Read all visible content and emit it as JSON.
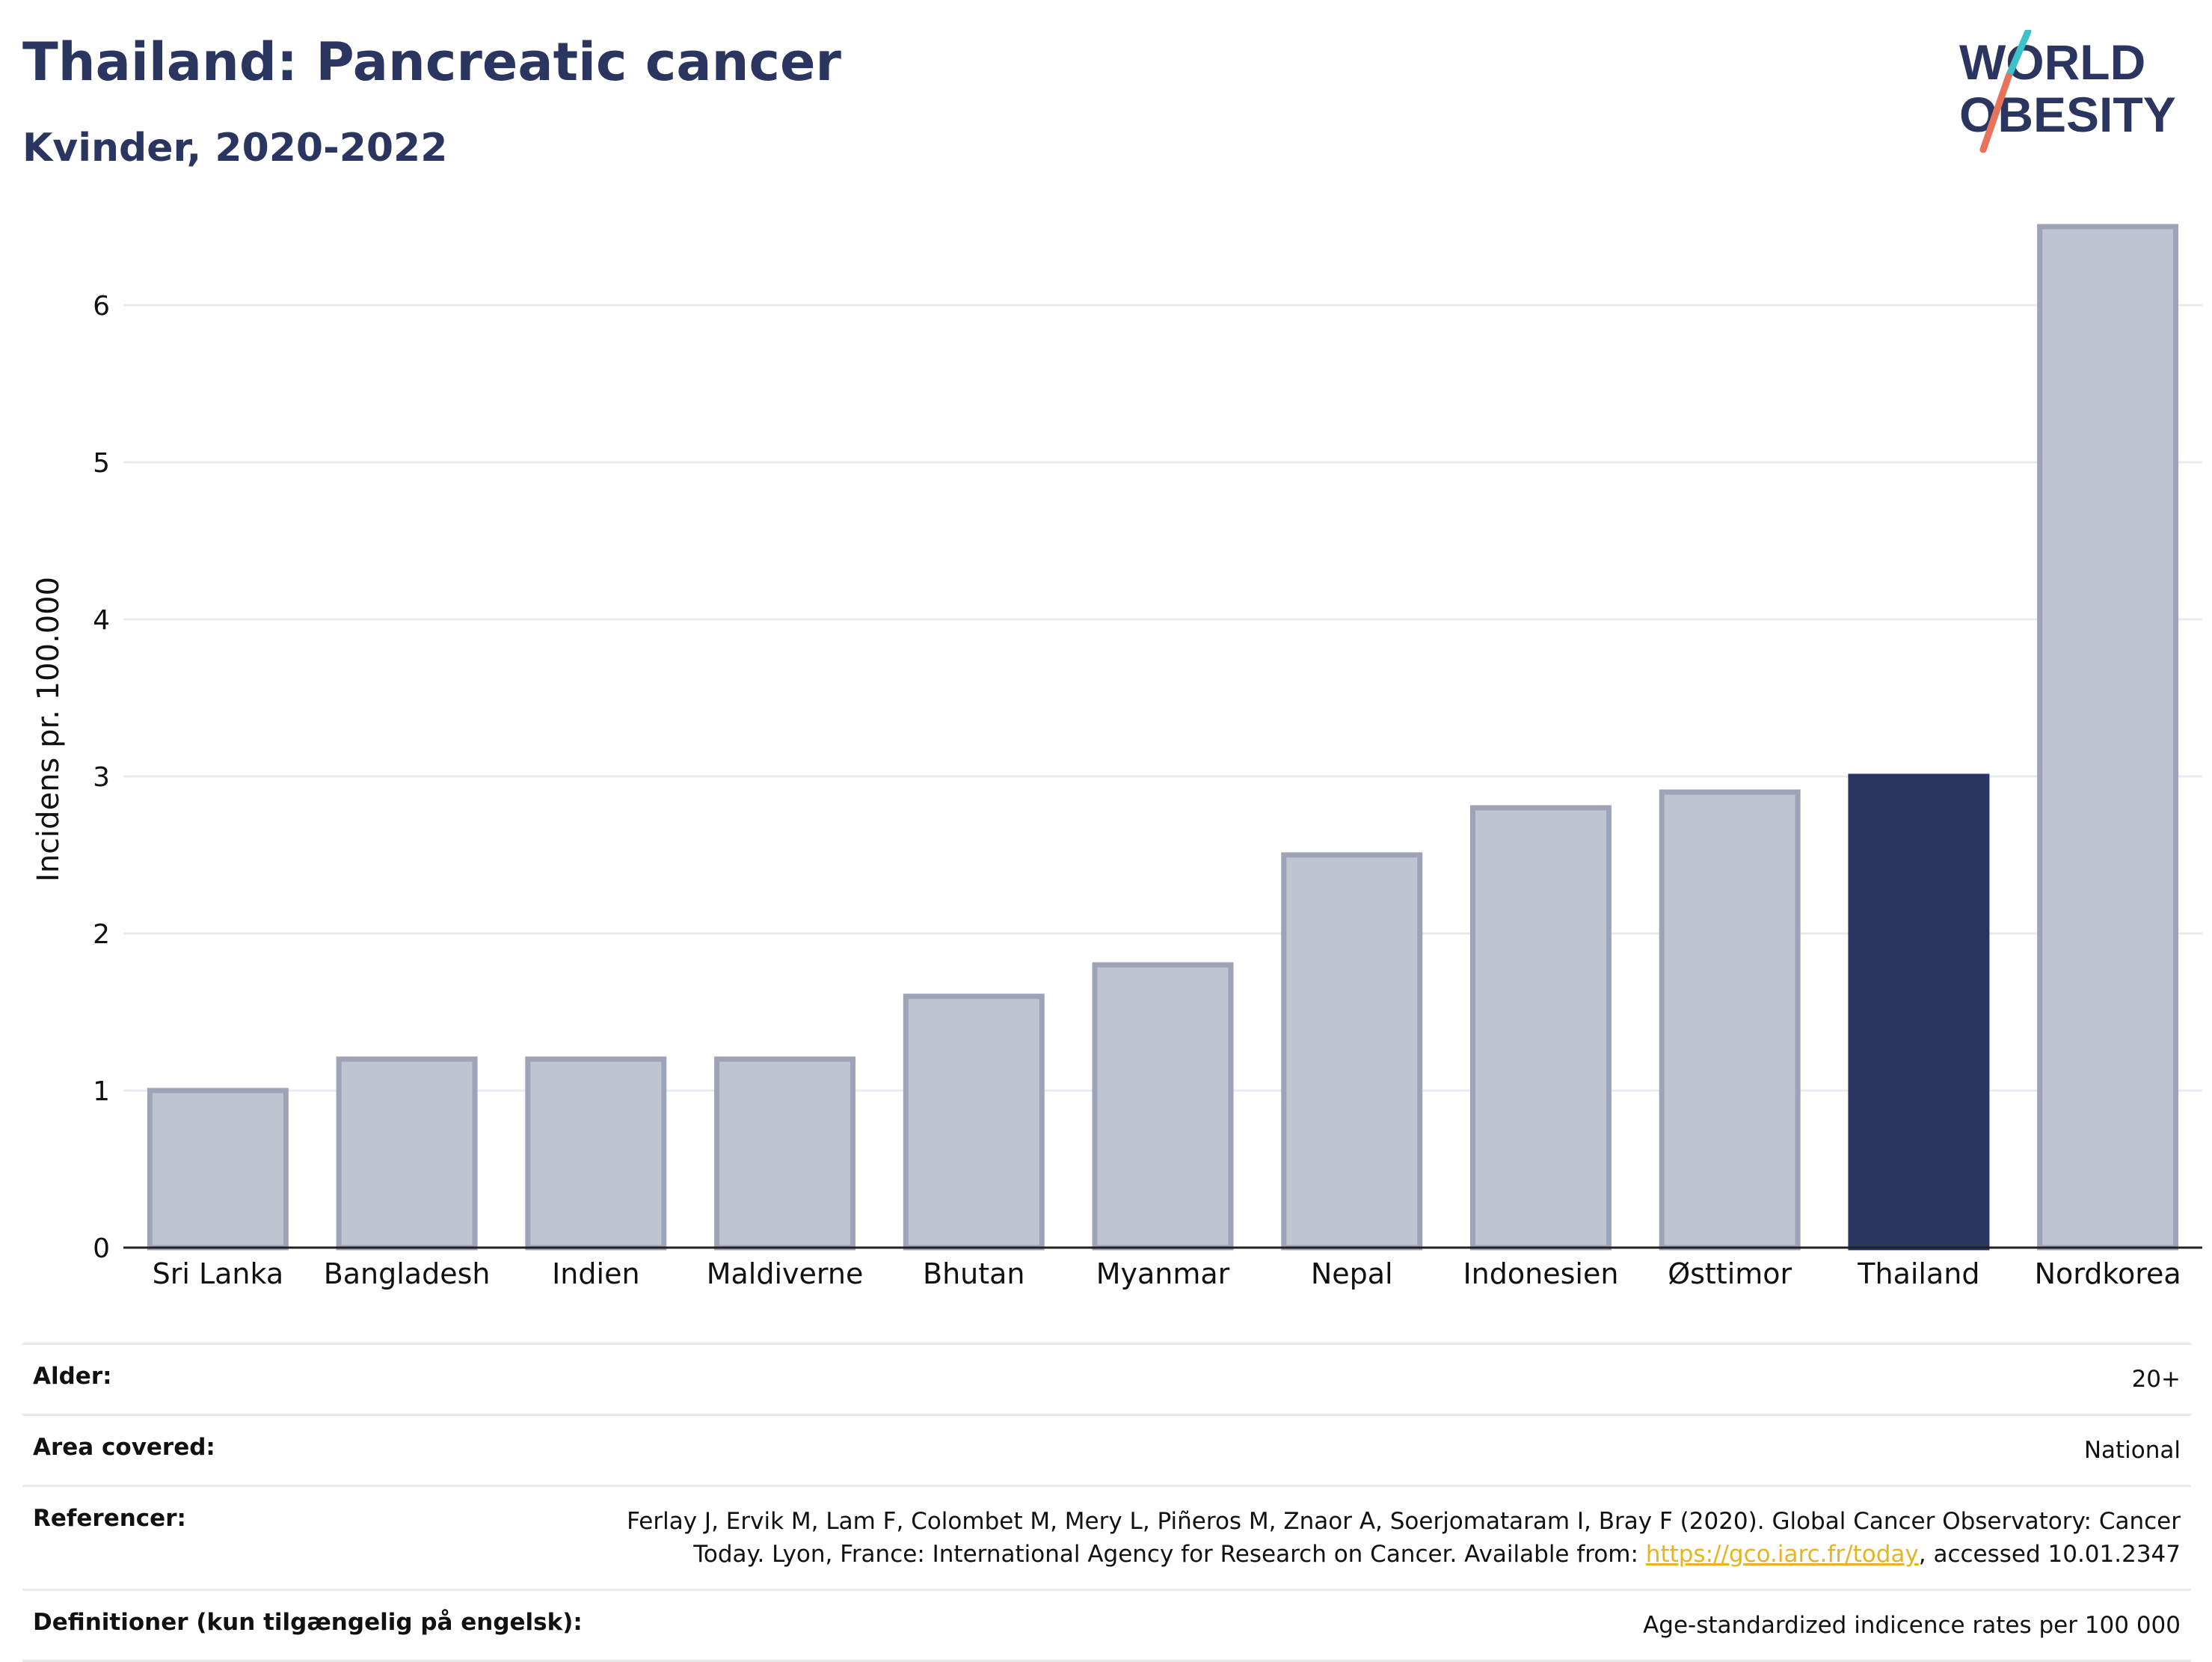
{
  "header": {
    "title": "Thailand: Pancreatic cancer",
    "subtitle": "Kvinder, 2020-2022"
  },
  "logo": {
    "line1": "WORLD",
    "line2": "OBESITY",
    "colors": {
      "text": "#2a3560",
      "slash_top": "#3fc1c9",
      "slash_bottom": "#e8735a"
    }
  },
  "chart_data": {
    "type": "bar",
    "categories": [
      "Sri Lanka",
      "Bangladesh",
      "Indien",
      "Maldiverne",
      "Bhutan",
      "Myanmar",
      "Nepal",
      "Indonesien",
      "Østtimor",
      "Thailand",
      "Nordkorea"
    ],
    "values": [
      1.0,
      1.2,
      1.2,
      1.2,
      1.6,
      1.8,
      2.5,
      2.8,
      2.9,
      3.0,
      6.5
    ],
    "highlight": "Thailand",
    "ylabel": "Incidens pr. 100.000",
    "ylim": [
      0,
      6.8
    ],
    "yticks": [
      0,
      1,
      2,
      3,
      4,
      5,
      6
    ],
    "grid": true,
    "colors": {
      "bar": "#c0c4d1",
      "bar_border": "#9ea3b8",
      "highlight": "#2a3560",
      "grid": "#e8ebef",
      "axis": "#222222"
    }
  },
  "meta": [
    {
      "label": "Alder:",
      "value": "20+"
    },
    {
      "label": "Area covered:",
      "value": "National"
    },
    {
      "label": "Referencer:",
      "value_before": "Ferlay J, Ervik M, Lam F, Colombet M, Mery L, Piñeros M, Znaor A, Soerjomataram I, Bray F (2020). Global Cancer Observatory: Cancer Today. Lyon, France: International Agency for Research on Cancer. Available from: ",
      "link": "https://gco.iarc.fr/today",
      "value_after": ", accessed 10.01.2347"
    },
    {
      "label": "Definitioner (kun tilgængelig på engelsk):",
      "value": "Age-standardized indicence rates per 100 000"
    }
  ]
}
